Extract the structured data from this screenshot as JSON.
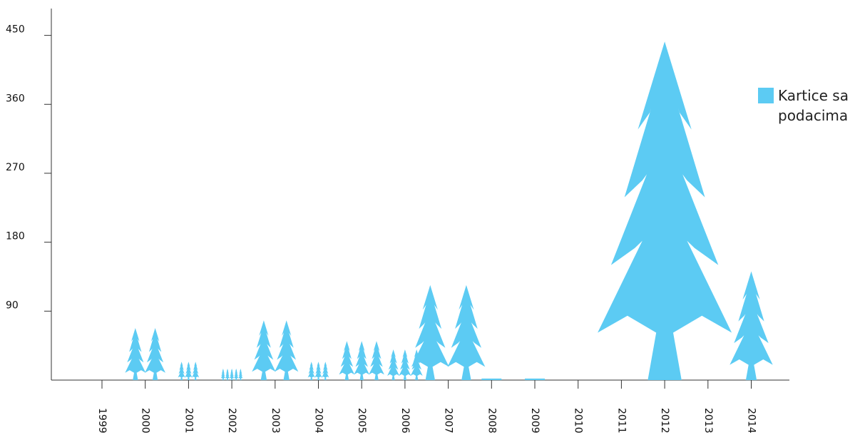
{
  "chart_data": {
    "type": "pictograph",
    "categories": [
      "1999",
      "2000",
      "2001",
      "2002",
      "2003",
      "2004",
      "2005",
      "2006",
      "2007",
      "2008",
      "2009",
      "2010",
      "2011",
      "2012",
      "2013",
      "2014"
    ],
    "series": [
      {
        "name": "Kartice sa podacima",
        "color": "#5ccbf3",
        "values": [
          0,
          68,
          24,
          15,
          78,
          24,
          51,
          40,
          124,
          2,
          2,
          0,
          0,
          442,
          0,
          142
        ]
      }
    ],
    "ylim": [
      0,
      485
    ],
    "yticks": [
      90,
      180,
      270,
      360,
      450
    ]
  }
}
